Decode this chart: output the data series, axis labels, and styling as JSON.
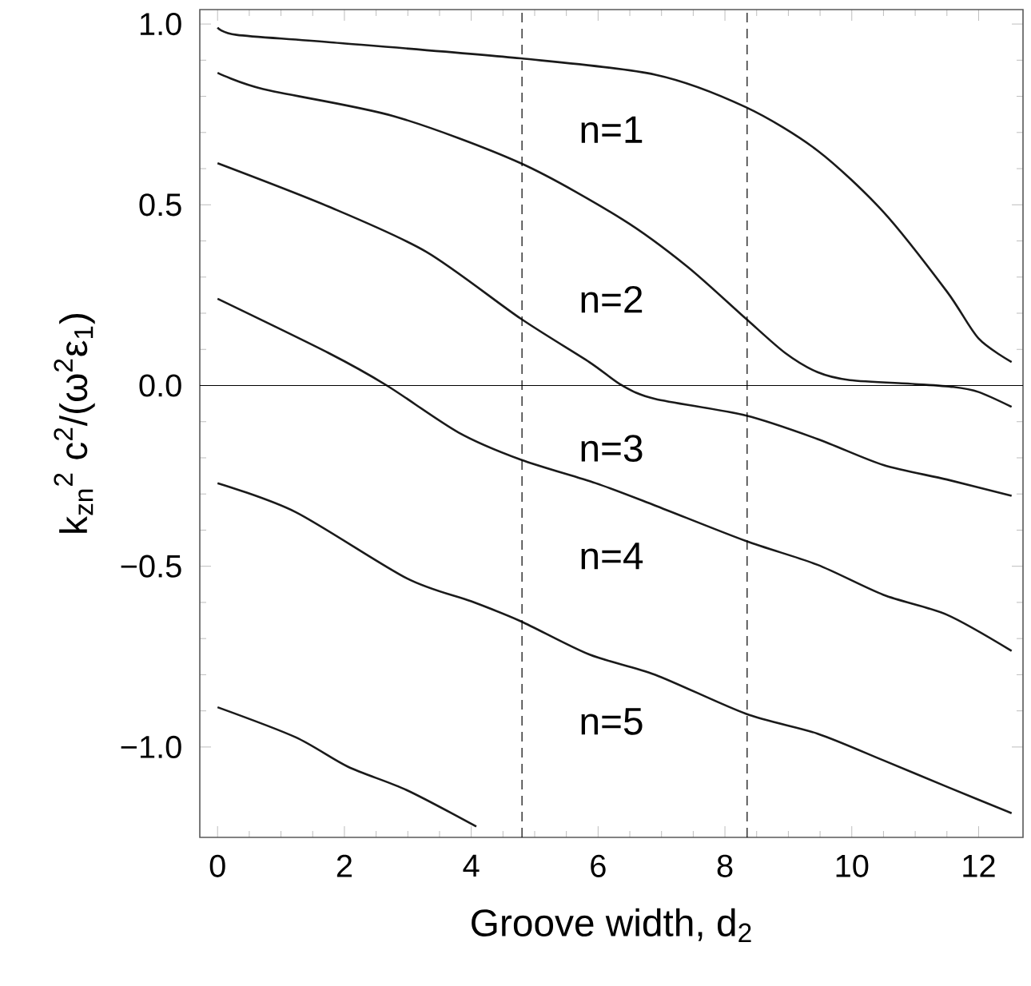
{
  "chart_data": {
    "type": "line",
    "xlabel": "Groove width, d$_{2}$",
    "ylabel": "k$_{zn}$$^{2}$ c$^{2}$/(ω$^{2}$ε$_{1}$)",
    "xlim": [
      -0.28,
      12.7
    ],
    "ylim": [
      -1.25,
      1.04
    ],
    "xticks": [
      0,
      2,
      4,
      6,
      8,
      10,
      12
    ],
    "yticks": [
      {
        "value": -1.0,
        "label": "−1.0"
      },
      {
        "value": -0.5,
        "label": "−0.5"
      },
      {
        "value": 0.0,
        "label": "0.0"
      },
      {
        "value": 0.5,
        "label": "0.5"
      },
      {
        "value": 1.0,
        "label": "1.0"
      }
    ],
    "series": [
      {
        "color": "#1a1a1a",
        "x": [
          0,
          0.3,
          1.75,
          4.78,
          6.9,
          8.33,
          9.46,
          10.5,
          11.5,
          12.0,
          12.52
        ],
        "values": [
          0.99,
          0.97,
          0.95,
          0.905,
          0.86,
          0.77,
          0.65,
          0.48,
          0.26,
          0.13,
          0.065
        ]
      },
      {
        "color": "#1a1a1a",
        "x": [
          0,
          0.72,
          2.78,
          4.78,
          6.38,
          7.4,
          8.33,
          8.95,
          9.46,
          9.97,
          11.0,
          11.6,
          12.0,
          12.52
        ],
        "values": [
          0.865,
          0.82,
          0.745,
          0.615,
          0.46,
          0.33,
          0.185,
          0.09,
          0.037,
          0.015,
          0.004,
          -0.004,
          -0.018,
          -0.059
        ]
      },
      {
        "color": "#1a1a1a",
        "x": [
          0,
          1.75,
          3.29,
          4.78,
          5.86,
          6.38,
          6.9,
          8.33,
          9.46,
          10.5,
          11.5,
          12.52
        ],
        "values": [
          0.615,
          0.495,
          0.37,
          0.185,
          0.065,
          0.0,
          -0.037,
          -0.083,
          -0.148,
          -0.22,
          -0.26,
          -0.305
        ]
      },
      {
        "color": "#1a1a1a",
        "x": [
          0,
          1.75,
          2.67,
          3.8,
          4.78,
          5.96,
          6.9,
          8.33,
          9.46,
          10.5,
          11.5,
          12.52
        ],
        "values": [
          0.24,
          0.09,
          0.0,
          -0.13,
          -0.205,
          -0.27,
          -0.332,
          -0.43,
          -0.496,
          -0.579,
          -0.634,
          -0.734
        ]
      },
      {
        "color": "#1a1a1a",
        "x": [
          0,
          1.23,
          2.98,
          4.0,
          4.78,
          5.86,
          6.9,
          8.33,
          9.46,
          10.5,
          11.5,
          12.52
        ],
        "values": [
          -0.27,
          -0.35,
          -0.533,
          -0.597,
          -0.652,
          -0.744,
          -0.8,
          -0.908,
          -0.963,
          -1.037,
          -1.11,
          -1.183
        ]
      },
      {
        "color": "#1a1a1a",
        "x": [
          0,
          1.23,
          2.06,
          2.98,
          4.08
        ],
        "values": [
          -0.89,
          -0.973,
          -1.055,
          -1.119,
          -1.22
        ]
      }
    ],
    "ref_lines": [
      {
        "axis": "y",
        "value": 0.0,
        "color": "#000000",
        "line_style": "solid"
      },
      {
        "axis": "x",
        "value": 4.8,
        "color": "#000000",
        "line_style": "dashed"
      },
      {
        "axis": "x",
        "value": 8.35,
        "color": "#000000",
        "line_style": "dashed"
      }
    ],
    "annotations": [
      "n=1",
      "n=2",
      "n=3",
      "n=4",
      "n=5"
    ]
  }
}
